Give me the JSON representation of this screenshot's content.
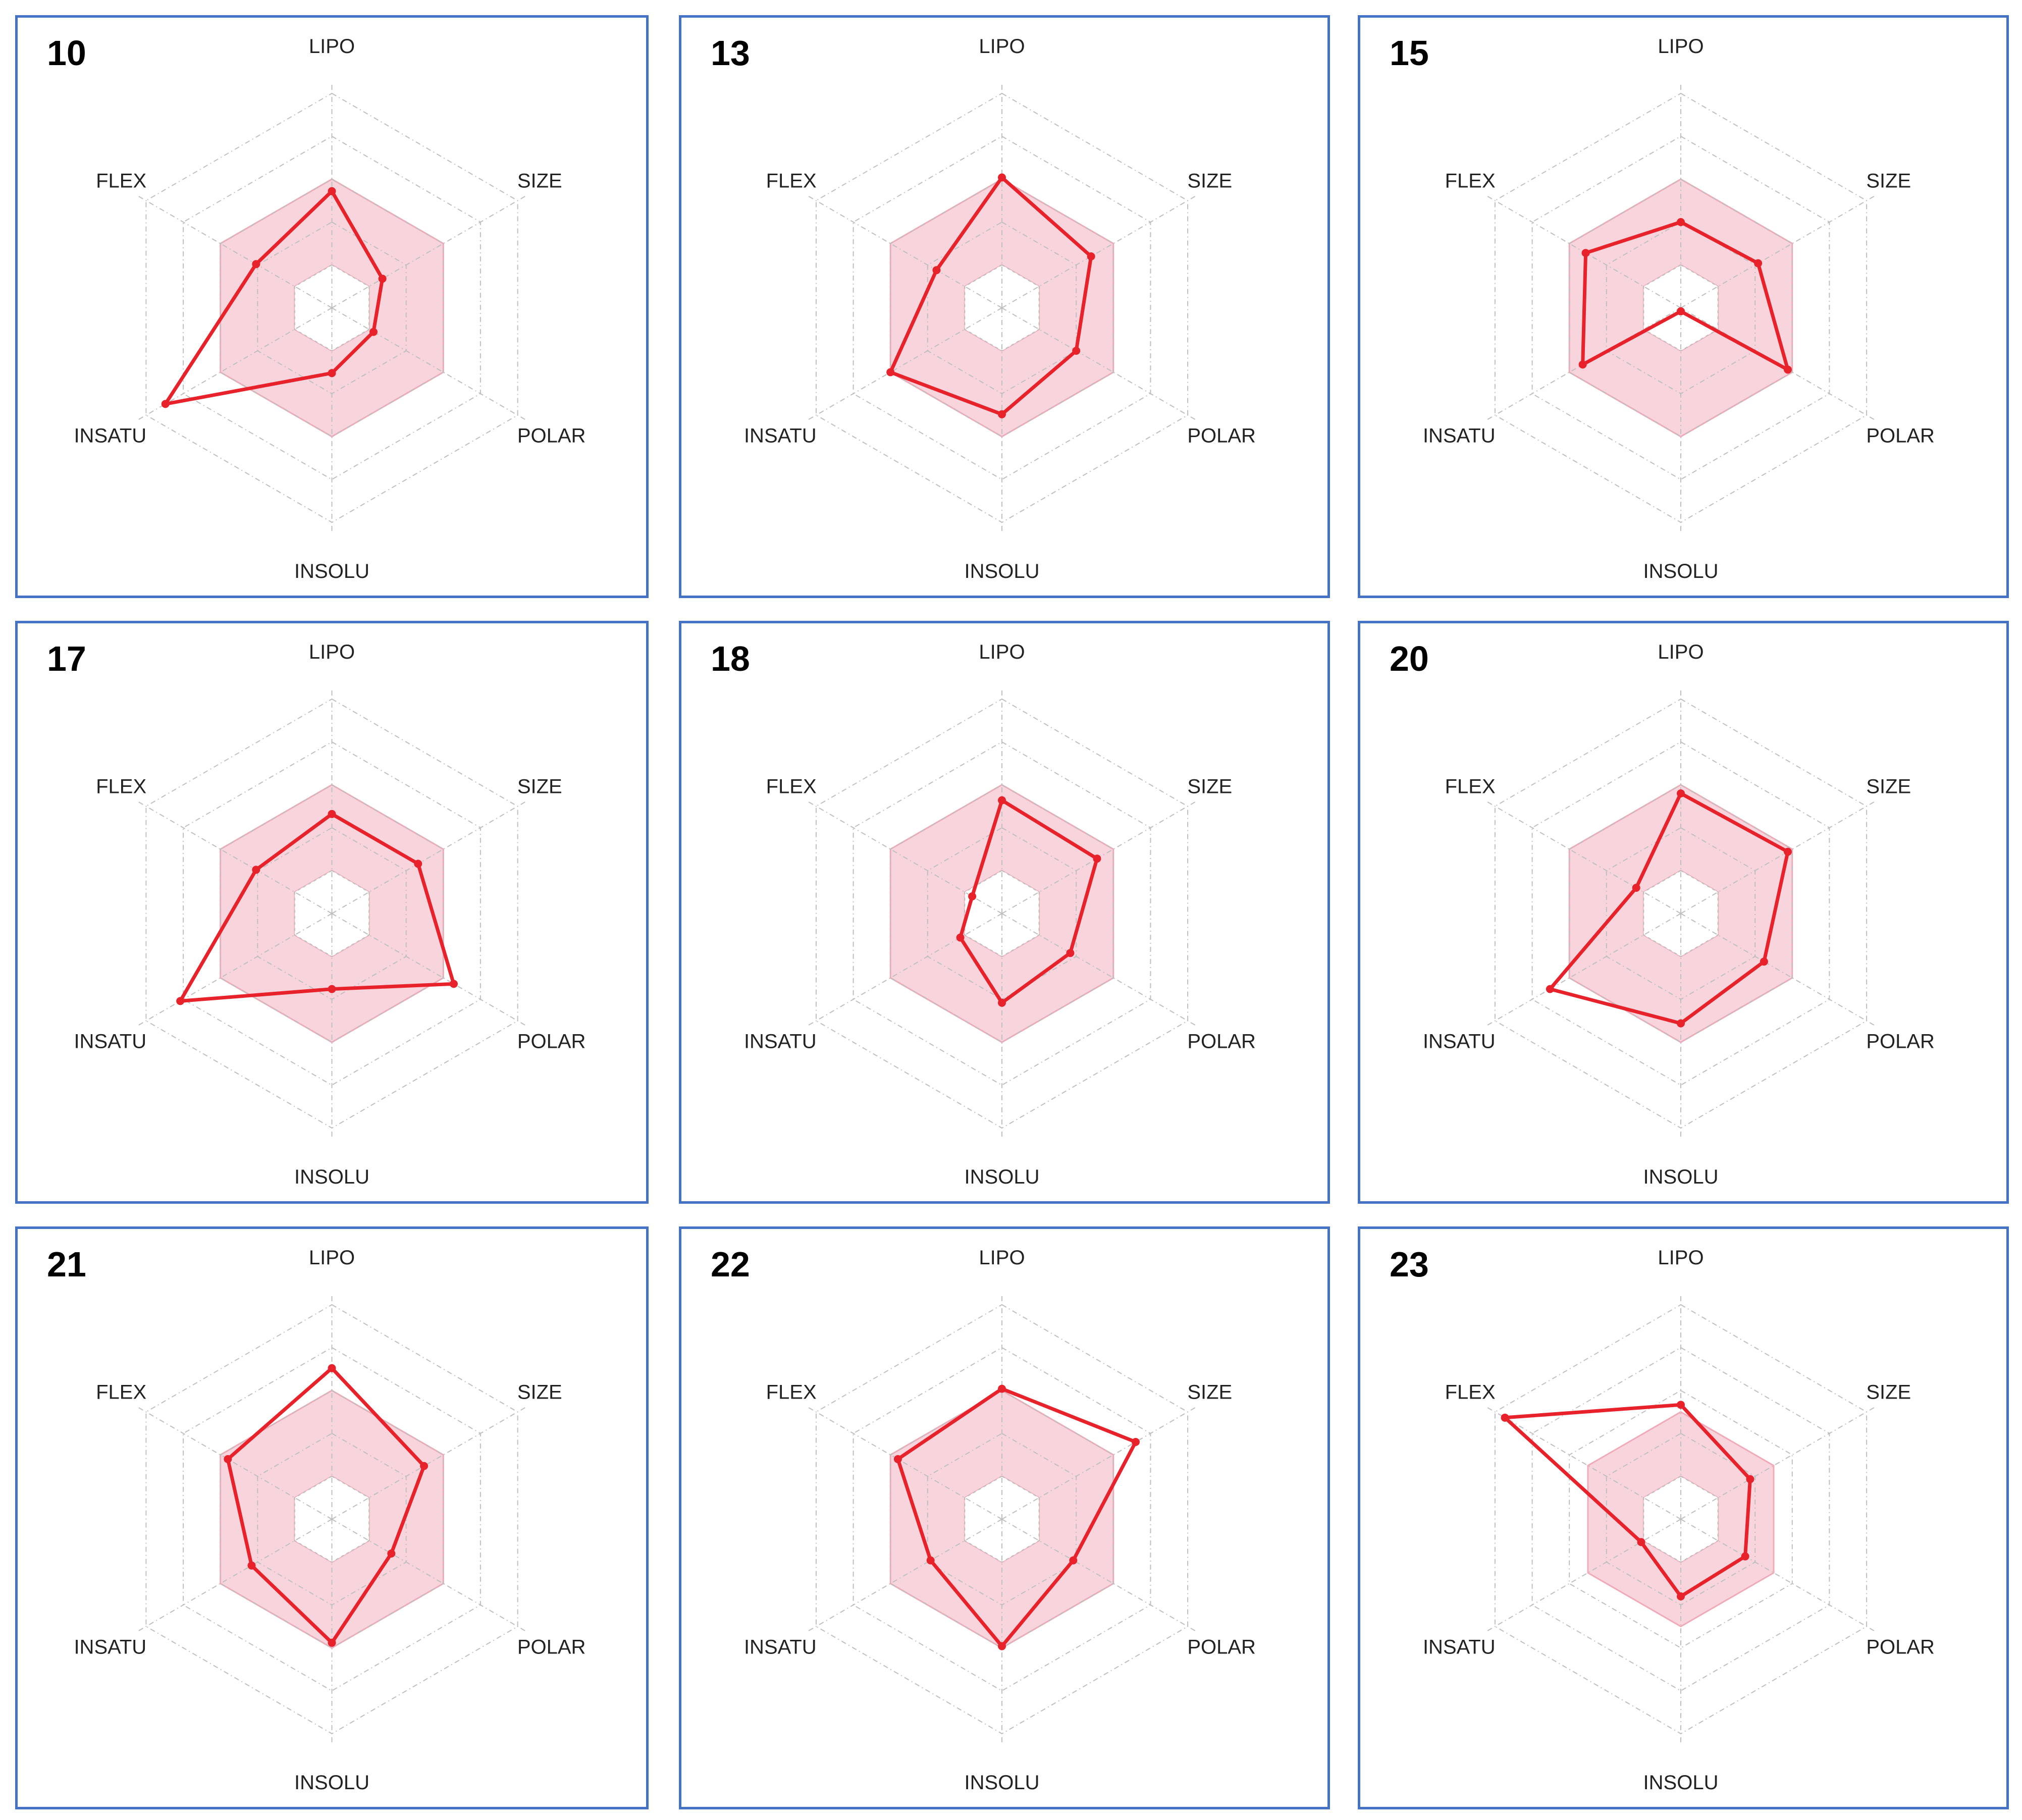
{
  "colors": {
    "panel_border": "#4472c4",
    "series_line": "#e8222b",
    "optimal_fill": "#f8d5dc",
    "optimal_stroke": "#f0aab8",
    "grid": "#bfbfbf"
  },
  "axes": [
    "LIPO",
    "SIZE",
    "POLAR",
    "INSOLU",
    "INSATU",
    "FLEX"
  ],
  "chart_data": [
    {
      "type": "radar",
      "title": "10",
      "axes": [
        "LIPO",
        "SIZE",
        "POLAR",
        "INSOLU",
        "INSATU",
        "FLEX"
      ],
      "values": [
        0.68,
        0.34,
        0.28,
        0.38,
        1.12,
        0.51
      ],
      "range": [
        0,
        1.25
      ],
      "rings": 4,
      "optimal_range": [
        0.25,
        0.75
      ]
    },
    {
      "type": "radar",
      "title": "13",
      "axes": [
        "LIPO",
        "SIZE",
        "POLAR",
        "INSOLU",
        "INSATU",
        "FLEX"
      ],
      "values": [
        0.76,
        0.6,
        0.5,
        0.62,
        0.75,
        0.44
      ],
      "range": [
        0,
        1.25
      ],
      "rings": 4,
      "optimal_range": [
        0.25,
        0.75
      ]
    },
    {
      "type": "radar",
      "title": "15",
      "axes": [
        "LIPO",
        "SIZE",
        "POLAR",
        "INSOLU",
        "INSATU",
        "FLEX"
      ],
      "values": [
        0.5,
        0.52,
        0.72,
        0.0,
        0.66,
        0.64
      ],
      "range": [
        0,
        1.25
      ],
      "rings": 4,
      "optimal_range": [
        0.25,
        0.75
      ]
    },
    {
      "type": "radar",
      "title": "17",
      "axes": [
        "LIPO",
        "SIZE",
        "POLAR",
        "INSOLU",
        "INSATU",
        "FLEX"
      ],
      "values": [
        0.58,
        0.58,
        0.82,
        0.44,
        1.02,
        0.51
      ],
      "range": [
        0,
        1.25
      ],
      "rings": 4,
      "optimal_range": [
        0.25,
        0.75
      ]
    },
    {
      "type": "radar",
      "title": "18",
      "axes": [
        "LIPO",
        "SIZE",
        "POLAR",
        "INSOLU",
        "INSATU",
        "FLEX"
      ],
      "values": [
        0.66,
        0.64,
        0.46,
        0.52,
        0.28,
        0.2
      ],
      "range": [
        0,
        1.25
      ],
      "rings": 4,
      "optimal_range": [
        0.25,
        0.75
      ]
    },
    {
      "type": "radar",
      "title": "20",
      "axes": [
        "LIPO",
        "SIZE",
        "POLAR",
        "INSOLU",
        "INSATU",
        "FLEX"
      ],
      "values": [
        0.7,
        0.72,
        0.56,
        0.64,
        0.88,
        0.3
      ],
      "range": [
        0,
        1.25
      ],
      "rings": 4,
      "optimal_range": [
        0.25,
        0.75
      ]
    },
    {
      "type": "radar",
      "title": "21",
      "axes": [
        "LIPO",
        "SIZE",
        "POLAR",
        "INSOLU",
        "INSATU",
        "FLEX"
      ],
      "values": [
        0.88,
        0.62,
        0.4,
        0.72,
        0.54,
        0.7
      ],
      "range": [
        0,
        1.25
      ],
      "rings": 4,
      "optimal_range": [
        0.25,
        0.75
      ]
    },
    {
      "type": "radar",
      "title": "22",
      "axes": [
        "LIPO",
        "SIZE",
        "POLAR",
        "INSOLU",
        "INSATU",
        "FLEX"
      ],
      "values": [
        0.76,
        0.9,
        0.48,
        0.74,
        0.48,
        0.7
      ],
      "range": [
        0,
        1.25
      ],
      "rings": 4,
      "optimal_range": [
        0.25,
        0.75
      ]
    },
    {
      "type": "radar",
      "title": "23",
      "axes": [
        "LIPO",
        "SIZE",
        "POLAR",
        "INSOLU",
        "INSATU",
        "FLEX"
      ],
      "values": [
        0.8,
        0.56,
        0.52,
        0.54,
        0.32,
        1.42
      ],
      "range": [
        0,
        1.5
      ],
      "rings": 4,
      "optimal_range": [
        0.25,
        0.75
      ]
    }
  ]
}
